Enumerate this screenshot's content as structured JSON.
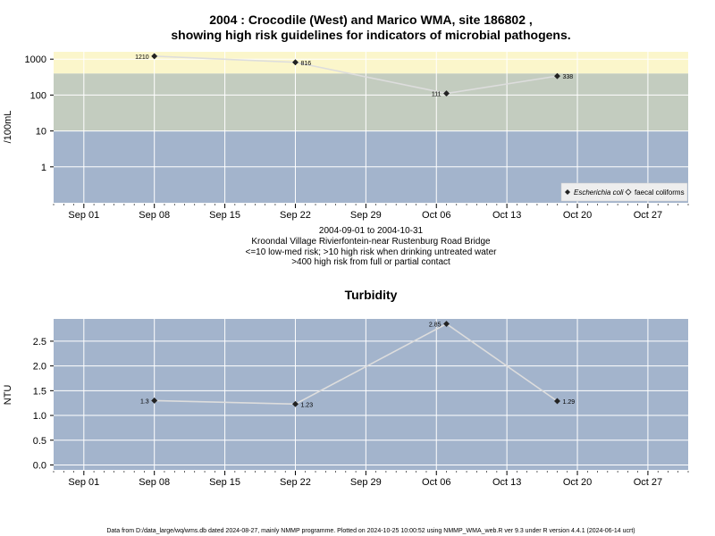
{
  "chart_data": [
    {
      "type": "line",
      "title": "2004 : Crocodile (West) and Marico WMA, site 186802 ,",
      "subtitle": "showing high risk guidelines for indicators of microbial pathogens.",
      "ylabel": "/100mL",
      "y_scale": "log",
      "ylim": [
        0.1,
        1600
      ],
      "y_ticks": [
        1,
        10,
        100,
        1000
      ],
      "y_tick_labels": [
        "1",
        "10",
        "100",
        "1000"
      ],
      "x_ticks": [
        "2004-09-01",
        "2004-09-08",
        "2004-09-15",
        "2004-09-22",
        "2004-09-29",
        "2004-10-06",
        "2004-10-13",
        "2004-10-20",
        "2004-10-27"
      ],
      "x_tick_labels": [
        "Sep 01",
        "Sep 08",
        "Sep 15",
        "Sep 22",
        "Sep 29",
        "Oct 06",
        "Oct 13",
        "Oct 20",
        "Oct 27"
      ],
      "xlim": [
        "2004-08-29",
        "2004-10-31"
      ],
      "risk_bands": [
        {
          "from": 0.1,
          "to": 10,
          "color": "#a3b4cc"
        },
        {
          "from": 10,
          "to": 400,
          "color": "#c3ccbf"
        },
        {
          "from": 400,
          "to": 1600,
          "color": "#fbf6cb"
        }
      ],
      "grid": true,
      "legend_position": "bottom-right",
      "line_color": "#dddddd",
      "series": [
        {
          "name": "Escherichia coli",
          "marker": "filled-diamond",
          "x": [
            "2004-09-08",
            "2004-09-22",
            "2004-10-07",
            "2004-10-18"
          ],
          "y": [
            1210,
            816,
            111,
            338
          ],
          "labels": [
            "1210",
            "816",
            "111",
            "338"
          ]
        },
        {
          "name": "faecal coliforms",
          "marker": "open-diamond",
          "x": [],
          "y": []
        }
      ],
      "notes": [
        "2004-09-01 to 2004-10-31",
        "Kroondal Village Rivierfontein-near Rustenburg Road Bridge",
        "<=10 low-med risk; >10 high risk when drinking untreated water",
        ">400 high risk from full or partial contact"
      ]
    },
    {
      "type": "line",
      "title": "Turbidity",
      "ylabel": "NTU",
      "ylim": [
        -0.1,
        2.95
      ],
      "y_ticks": [
        0,
        0.5,
        1,
        1.5,
        2,
        2.5
      ],
      "y_tick_labels": [
        "0.0",
        "0.5",
        "1.0",
        "1.5",
        "2.0",
        "2.5"
      ],
      "x_ticks": [
        "2004-09-01",
        "2004-09-08",
        "2004-09-15",
        "2004-09-22",
        "2004-09-29",
        "2004-10-06",
        "2004-10-13",
        "2004-10-20",
        "2004-10-27"
      ],
      "x_tick_labels": [
        "Sep 01",
        "Sep 08",
        "Sep 15",
        "Sep 22",
        "Sep 29",
        "Oct 06",
        "Oct 13",
        "Oct 20",
        "Oct 27"
      ],
      "xlim": [
        "2004-08-29",
        "2004-10-31"
      ],
      "background": "#a3b4cc",
      "grid": true,
      "line_color": "#dddddd",
      "series": [
        {
          "marker": "filled-diamond",
          "x": [
            "2004-09-08",
            "2004-09-22",
            "2004-10-07",
            "2004-10-18"
          ],
          "y": [
            1.3,
            1.23,
            2.85,
            1.29
          ],
          "labels": [
            "1.3",
            "1.23",
            "2.85",
            "1.29"
          ]
        }
      ]
    }
  ],
  "footer": "Data from D:/data_large/wq/wms.db dated 2024-08-27, mainly NMMP programme. Plotted on 2024-10-25 10:00:52 using NMMP_WMA_web.R ver 9.3 under R version 4.4.1 (2024-06-14 ucrt)"
}
